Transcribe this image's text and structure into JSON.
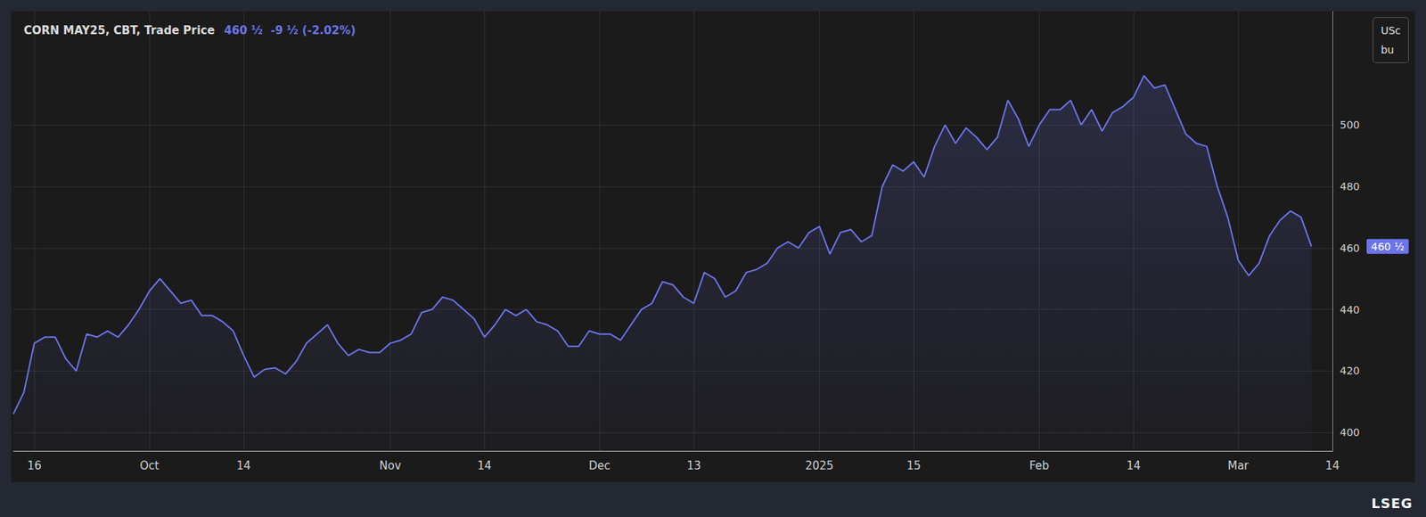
{
  "chart_data": {
    "type": "line",
    "title": "CORN MAY25, CBT, Trade Price",
    "subtitle": "460 ½  -9 ½ (-2.02%)",
    "y_label": "USc\nbu",
    "end_label": "460 ½",
    "source": "LSEG",
    "color": "#6c74ea",
    "grid": true,
    "categories": [
      null,
      null,
      "16",
      null,
      null,
      null,
      null,
      null,
      null,
      null,
      null,
      null,
      null,
      "Oct",
      null,
      null,
      null,
      null,
      null,
      null,
      null,
      null,
      "14",
      null,
      null,
      null,
      null,
      null,
      null,
      null,
      null,
      null,
      null,
      null,
      null,
      null,
      "Nov",
      null,
      null,
      null,
      null,
      null,
      null,
      null,
      null,
      "14",
      null,
      null,
      null,
      null,
      null,
      null,
      null,
      null,
      null,
      null,
      "Dec",
      null,
      null,
      null,
      null,
      null,
      null,
      null,
      null,
      "13",
      null,
      null,
      null,
      null,
      null,
      null,
      null,
      null,
      null,
      null,
      null,
      "2025",
      null,
      null,
      null,
      null,
      null,
      null,
      null,
      null,
      "15",
      null,
      null,
      null,
      null,
      null,
      null,
      null,
      null,
      null,
      null,
      null,
      "Feb",
      null,
      null,
      null,
      null,
      null,
      null,
      null,
      null,
      "14",
      null,
      null,
      null,
      null,
      null,
      null,
      null,
      null,
      null,
      "Mar",
      null,
      null,
      null,
      null,
      null,
      null,
      null,
      null,
      "14"
    ],
    "values": [
      406,
      413,
      429,
      431,
      431,
      424,
      420,
      432,
      431,
      433,
      431,
      435,
      440,
      446,
      450,
      446,
      442,
      443,
      438,
      438,
      436,
      433,
      425,
      418,
      420.5,
      421,
      419,
      423,
      429,
      432,
      435,
      429,
      425,
      427,
      426,
      426,
      429,
      430,
      432,
      439,
      440,
      444,
      443,
      440,
      437,
      431,
      435,
      440,
      438,
      440,
      436,
      435,
      433,
      428,
      428,
      433,
      432,
      432,
      430,
      435,
      440,
      442,
      449,
      448,
      444,
      442,
      452,
      450,
      444,
      446,
      452,
      453,
      455,
      460,
      462,
      460,
      465,
      467,
      458,
      465,
      466,
      462,
      464,
      480,
      487,
      485,
      488,
      483,
      493,
      500,
      494,
      499,
      496,
      492,
      496,
      508,
      502,
      493,
      500,
      505,
      505,
      508,
      500,
      505,
      498,
      504,
      506,
      509,
      516,
      512,
      513,
      505,
      497,
      494,
      493,
      480,
      470,
      456,
      451,
      455,
      464,
      469,
      472,
      470,
      460.5,
      null,
      null
    ],
    "ylim": [
      394,
      537
    ],
    "yticks": [
      400,
      420,
      440,
      460,
      480,
      500
    ]
  }
}
